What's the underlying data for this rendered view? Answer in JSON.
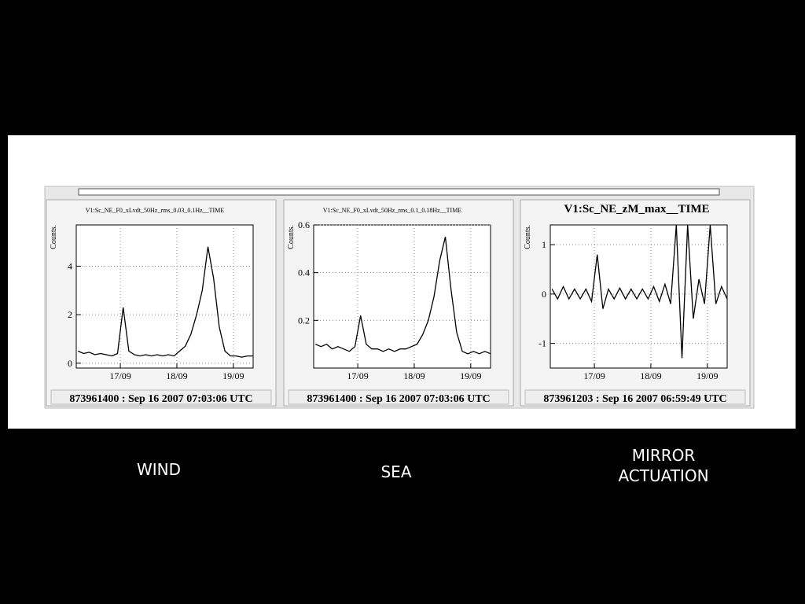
{
  "chart_data": [
    {
      "type": "line",
      "title": "V1:Sc_NE_F0_xLvdt_50Hz_rms_0.03_0.1Hz__TIME",
      "ylabel": "Counts.",
      "footer": "873961400 : Sep 16 2007 07:03:06 UTC",
      "x": [
        16.25,
        16.35,
        16.45,
        16.55,
        16.65,
        16.75,
        16.85,
        16.95,
        17.05,
        17.15,
        17.25,
        17.35,
        17.45,
        17.55,
        17.65,
        17.75,
        17.85,
        17.95,
        18.05,
        18.15,
        18.25,
        18.35,
        18.45,
        18.55,
        18.65,
        18.75,
        18.85,
        18.95,
        19.05,
        19.15,
        19.25,
        19.35
      ],
      "values": [
        0.5,
        0.4,
        0.45,
        0.35,
        0.4,
        0.35,
        0.3,
        0.4,
        2.3,
        0.5,
        0.35,
        0.3,
        0.35,
        0.3,
        0.35,
        0.3,
        0.35,
        0.3,
        0.5,
        0.7,
        1.2,
        2.0,
        3.0,
        4.8,
        3.5,
        1.5,
        0.5,
        0.3,
        0.3,
        0.25,
        0.3,
        0.3
      ],
      "color": "#000000",
      "xlim": [
        16.22,
        19.35
      ],
      "ylim": [
        -0.2,
        5.7
      ],
      "xticks": [
        {
          "value": 17,
          "label": "17/09"
        },
        {
          "value": 18,
          "label": "18/09"
        },
        {
          "value": 19,
          "label": "19/09"
        }
      ],
      "yticks": [
        0,
        2,
        4
      ],
      "grid": true
    },
    {
      "type": "line",
      "title": "V1:Sc_NE_F0_xLvdt_50Hz_rms_0.1_0.18Hz__TIME",
      "ylabel": "Counts.",
      "footer": "873961400 : Sep 16 2007 07:03:06 UTC",
      "x": [
        16.25,
        16.35,
        16.45,
        16.55,
        16.65,
        16.75,
        16.85,
        16.95,
        17.05,
        17.15,
        17.25,
        17.35,
        17.45,
        17.55,
        17.65,
        17.75,
        17.85,
        17.95,
        18.05,
        18.15,
        18.25,
        18.35,
        18.45,
        18.55,
        18.65,
        18.75,
        18.85,
        18.95,
        19.05,
        19.15,
        19.25,
        19.35
      ],
      "values": [
        0.1,
        0.09,
        0.1,
        0.08,
        0.09,
        0.08,
        0.07,
        0.09,
        0.22,
        0.1,
        0.08,
        0.08,
        0.07,
        0.08,
        0.07,
        0.08,
        0.08,
        0.09,
        0.1,
        0.14,
        0.2,
        0.3,
        0.45,
        0.55,
        0.33,
        0.15,
        0.07,
        0.06,
        0.07,
        0.06,
        0.07,
        0.06
      ],
      "color": "#000000",
      "xlim": [
        16.22,
        19.35
      ],
      "ylim": [
        0,
        0.6
      ],
      "xticks": [
        {
          "value": 17,
          "label": "17/09"
        },
        {
          "value": 18,
          "label": "18/09"
        },
        {
          "value": 19,
          "label": "19/09"
        }
      ],
      "yticks": [
        0.2,
        0.4,
        0.6
      ],
      "grid": true
    },
    {
      "type": "line",
      "title": "V1:Sc_NE_zM_max__TIME",
      "ylabel": "Counts.",
      "footer": "873961203 : Sep 16 2007 06:59:49 UTC",
      "x": [
        16.25,
        16.35,
        16.45,
        16.55,
        16.65,
        16.75,
        16.85,
        16.95,
        17.05,
        17.15,
        17.25,
        17.35,
        17.45,
        17.55,
        17.65,
        17.75,
        17.85,
        17.95,
        18.05,
        18.15,
        18.25,
        18.35,
        18.45,
        18.55,
        18.65,
        18.75,
        18.85,
        18.95,
        19.05,
        19.15,
        19.25,
        19.35
      ],
      "values": [
        0.1,
        -0.1,
        0.15,
        -0.1,
        0.1,
        -0.1,
        0.1,
        -0.15,
        0.8,
        -0.3,
        0.1,
        -0.1,
        0.12,
        -0.1,
        0.1,
        -0.1,
        0.1,
        -0.1,
        0.15,
        -0.15,
        0.2,
        -0.2,
        1.4,
        -1.3,
        1.4,
        -0.5,
        0.3,
        -0.2,
        1.4,
        -0.2,
        0.15,
        -0.1
      ],
      "color": "#000000",
      "xlim": [
        16.22,
        19.35
      ],
      "ylim": [
        -1.5,
        1.4
      ],
      "xticks": [
        {
          "value": 17,
          "label": "17/09"
        },
        {
          "value": 18,
          "label": "18/09"
        },
        {
          "value": 19,
          "label": "19/09"
        }
      ],
      "yticks": [
        -1,
        0,
        1
      ],
      "grid": true
    }
  ],
  "captions": [
    "WIND",
    "SEA",
    "MIRROR ACTUATION"
  ]
}
